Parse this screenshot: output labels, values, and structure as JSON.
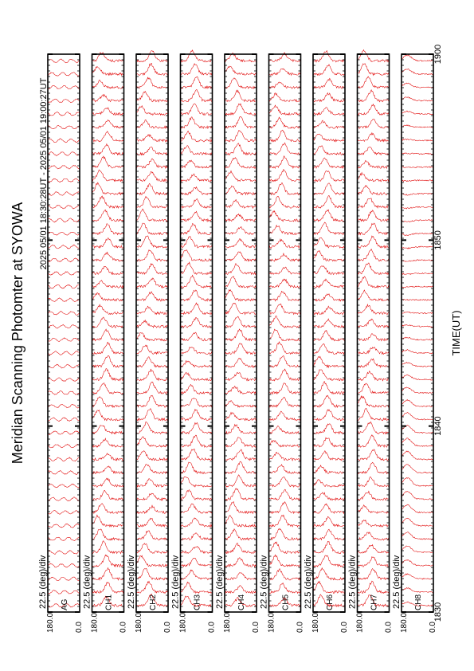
{
  "title": "Meridian Scanning Photomter at SYOWA",
  "subtitle": "2025 05/01 18:30:28UT - 2025 05/01 19:00:27UT",
  "colors": {
    "trace": "#e00000",
    "frame": "#000000",
    "background": "#ffffff"
  },
  "chart_data": {
    "type": "line",
    "title": "Meridian Scanning Photomter at SYOWA",
    "subtitle": "2025 05/01 18:30:28UT - 2025 05/01 19:00:27UT",
    "xlabel": "TIME(UT)",
    "xlim": [
      1830,
      1900
    ],
    "x_ticks": [
      "1830",
      "1840",
      "1850",
      "1900"
    ],
    "scale_label": "22.5 (deg)/div",
    "panel_ylim": [
      0.0,
      180.0
    ],
    "panel_y_ticks": [
      "180.0",
      "0.0"
    ],
    "panels": [
      {
        "channel": "AG",
        "kind": "flat"
      },
      {
        "channel": "CH1",
        "kind": "auroral"
      },
      {
        "channel": "CH2",
        "kind": "auroral"
      },
      {
        "channel": "CH3",
        "kind": "auroral"
      },
      {
        "channel": "CH4",
        "kind": "auroral"
      },
      {
        "channel": "CH5",
        "kind": "auroral"
      },
      {
        "channel": "CH6",
        "kind": "auroral"
      },
      {
        "channel": "CH7",
        "kind": "auroral"
      },
      {
        "channel": "CH8",
        "kind": "smooth"
      }
    ]
  }
}
